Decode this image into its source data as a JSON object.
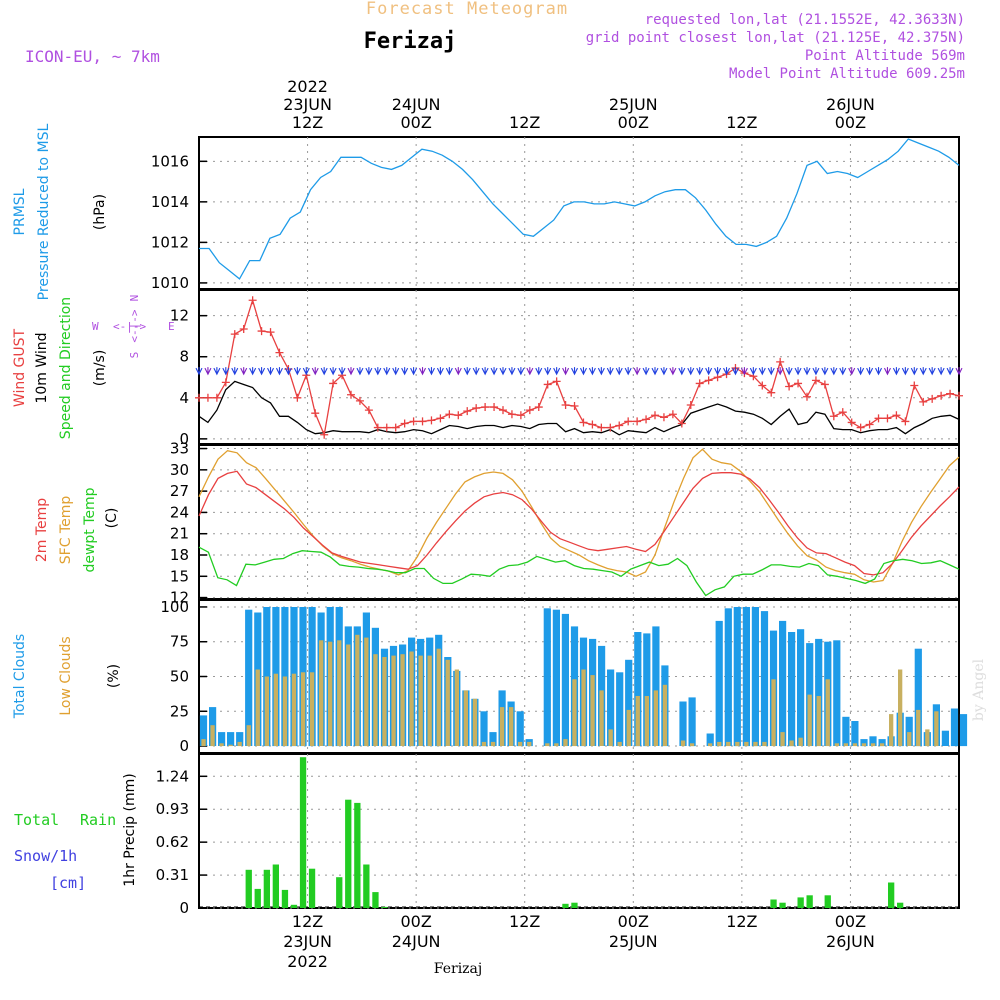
{
  "header": {
    "forecast_title": "Forecast Meteogram",
    "location": "Ferizaj",
    "model": "ICON-EU, ~ 7km",
    "requested": "requested lon,lat (21.1552E, 42.3633N)",
    "grid_point": "grid point closest lon,lat (21.125E, 42.375N)",
    "point_altitude": "Point Altitude 569m",
    "model_altitude": "Model Point Altitude 609.25m",
    "footer_location": "Ferizaj",
    "credit": "by Angel"
  },
  "time_axis": {
    "top_labels": [
      {
        "hour": 12,
        "lines": [
          "2022",
          "23JUN",
          "12Z"
        ]
      },
      {
        "hour": 24,
        "lines": [
          "24JUN",
          "00Z"
        ]
      },
      {
        "hour": 36,
        "lines": [
          "12Z"
        ]
      },
      {
        "hour": 48,
        "lines": [
          "25JUN",
          "00Z"
        ]
      },
      {
        "hour": 60,
        "lines": [
          "12Z"
        ]
      },
      {
        "hour": 72,
        "lines": [
          "26JUN",
          "00Z"
        ]
      }
    ],
    "bottom_labels": [
      {
        "hour": 12,
        "lines": [
          "12Z",
          "23JUN",
          "2022"
        ]
      },
      {
        "hour": 24,
        "lines": [
          "00Z",
          "24JUN"
        ]
      },
      {
        "hour": 36,
        "lines": [
          "12Z"
        ]
      },
      {
        "hour": 48,
        "lines": [
          "00Z",
          "25JUN"
        ]
      },
      {
        "hour": 60,
        "lines": [
          "12Z"
        ]
      },
      {
        "hour": 72,
        "lines": [
          "00Z",
          "26JUN"
        ]
      }
    ]
  },
  "panels": {
    "pressure": {
      "label1": "PRMSL",
      "label2": "Pressure Reduced to MSL",
      "unit": "(hPa)"
    },
    "wind": {
      "gust_label": "Wind GUST",
      "wind_label": "10m Wind",
      "dir_label": "Speed and Direction",
      "unit": "(m/s)",
      "compass_w": "W",
      "compass_e": "E",
      "compass_n": "N",
      "compass_s": "S"
    },
    "temp": {
      "t2m_label": "2m Temp",
      "sfc_label": "SFC Temp",
      "dew_label": "dewpt Temp",
      "unit": "(C)"
    },
    "clouds": {
      "total_label": "Total Clouds",
      "low_label": "Low Clouds",
      "unit": "(%)"
    },
    "precip": {
      "total_label": "Total",
      "rain_label": "Rain",
      "snow_label": "Snow/1h",
      "cm_label": "[cm]",
      "unit": "1hr Precip (mm)"
    }
  },
  "colors": {
    "pressure": "#1e9be8",
    "gust": "#e84040",
    "wind": "#000000",
    "t2m": "#e84040",
    "sfc": "#e0a030",
    "dew": "#22cc22",
    "total_cloud": "#1e9be8",
    "low_cloud": "#c8b060",
    "precip": "#22cc22",
    "purple": "#b050e0",
    "title_orange": "#f0c080",
    "snow": "#4040e0"
  },
  "chart_data": [
    {
      "type": "line",
      "title": "PRMSL",
      "ylabel": "(hPa)",
      "x_start_hour": 0,
      "x_end_hour": 84,
      "yticks": [
        1010,
        1012,
        1014,
        1016
      ],
      "ylim": [
        1009.7,
        1017.2
      ],
      "series": [
        {
          "name": "PRMSL",
          "values": [
            1011.7,
            1011.7,
            1011.0,
            1010.6,
            1010.2,
            1011.1,
            1011.1,
            1012.2,
            1012.4,
            1013.2,
            1013.5,
            1014.6,
            1015.2,
            1015.5,
            1016.2,
            1016.2,
            1016.2,
            1015.9,
            1015.7,
            1015.6,
            1015.8,
            1016.2,
            1016.6,
            1016.5,
            1016.3,
            1016.0,
            1015.6,
            1015.1,
            1014.5,
            1013.9,
            1013.4,
            1012.9,
            1012.4,
            1012.3,
            1012.7,
            1013.1,
            1013.8,
            1014.0,
            1014.0,
            1013.9,
            1013.9,
            1014.0,
            1013.9,
            1013.8,
            1014.0,
            1014.3,
            1014.5,
            1014.6,
            1014.6,
            1014.2,
            1013.6,
            1012.9,
            1012.3,
            1011.9,
            1011.9,
            1011.8,
            1012.0,
            1012.3,
            1013.2,
            1014.4,
            1015.8,
            1016.0,
            1015.4,
            1015.5,
            1015.4,
            1015.2,
            1015.5,
            1015.8,
            1016.1,
            1016.5,
            1017.1,
            1016.9,
            1016.7,
            1016.5,
            1016.2,
            1015.8
          ]
        }
      ]
    },
    {
      "type": "line",
      "title": "Wind",
      "ylabel": "(m/s)",
      "x_start_hour": 0,
      "x_end_hour": 84,
      "yticks": [
        0,
        4,
        8,
        12
      ],
      "ylim": [
        -0.5,
        14.5
      ],
      "series": [
        {
          "name": "Wind GUST",
          "values": [
            4.0,
            4.0,
            4.0,
            5.5,
            10.2,
            10.7,
            13.5,
            10.5,
            10.4,
            8.4,
            6.8,
            4.0,
            6.2,
            2.5,
            0.4,
            5.4,
            6.2,
            4.3,
            3.7,
            2.8,
            1.1,
            1.1,
            1.1,
            1.5,
            1.7,
            1.7,
            1.8,
            2.0,
            2.4,
            2.3,
            2.7,
            3.0,
            3.1,
            3.1,
            2.8,
            2.4,
            2.3,
            2.8,
            3.1,
            5.3,
            5.6,
            3.3,
            3.2,
            1.6,
            1.4,
            1.1,
            1.1,
            1.3,
            1.7,
            1.7,
            1.9,
            2.3,
            2.1,
            2.4,
            1.5,
            3.3,
            5.4,
            5.7,
            6.0,
            6.3,
            6.9,
            6.4,
            6.1,
            5.2,
            4.5,
            7.5,
            5.1,
            5.4,
            4.1,
            5.7,
            5.3,
            2.2,
            2.6,
            1.6,
            1.1,
            1.4,
            2.0,
            2.0,
            2.3,
            1.7,
            5.2,
            3.6,
            3.9,
            4.2,
            4.4,
            4.2
          ]
        },
        {
          "name": "10m Wind",
          "values": [
            2.2,
            1.6,
            2.8,
            4.8,
            5.6,
            5.3,
            5.0,
            4.0,
            3.5,
            2.2,
            2.2,
            1.6,
            0.9,
            0.5,
            0.6,
            0.8,
            0.7,
            0.7,
            0.7,
            0.6,
            0.9,
            0.7,
            0.6,
            0.7,
            0.9,
            0.8,
            0.5,
            0.9,
            1.3,
            1.2,
            1.0,
            1.2,
            1.3,
            1.3,
            1.1,
            1.3,
            1.2,
            1.0,
            1.4,
            1.5,
            1.5,
            0.7,
            1.0,
            0.6,
            0.7,
            0.6,
            0.9,
            0.4,
            0.8,
            0.7,
            0.6,
            1.1,
            0.7,
            1.1,
            1.4,
            2.5,
            2.8,
            3.1,
            3.4,
            3.1,
            2.7,
            2.6,
            2.4,
            2.0,
            1.4,
            2.2,
            2.9,
            1.4,
            1.6,
            2.6,
            2.4,
            1.0,
            0.9,
            0.9,
            0.6,
            0.8,
            0.9,
            0.9,
            1.1,
            0.5,
            1.1,
            1.5,
            2.0,
            2.2,
            2.3,
            1.9
          ]
        }
      ]
    },
    {
      "type": "line",
      "title": "Temperature",
      "ylabel": "(C)",
      "x_start_hour": 0,
      "x_end_hour": 84,
      "yticks": [
        12,
        15,
        18,
        21,
        24,
        27,
        30,
        33
      ],
      "ylim": [
        11.8,
        33.5
      ],
      "series": [
        {
          "name": "2m Temp",
          "values": [
            23.5,
            26.5,
            28.8,
            29.5,
            29.8,
            28.0,
            27.5,
            26.5,
            25.5,
            24.5,
            23.3,
            21.8,
            20.6,
            19.4,
            18.3,
            17.8,
            17.4,
            17.0,
            16.8,
            16.6,
            16.4,
            16.2,
            16.0,
            16.5,
            18.0,
            19.7,
            21.3,
            22.8,
            24.2,
            25.3,
            26.2,
            26.6,
            26.8,
            26.5,
            25.8,
            24.5,
            22.8,
            21.2,
            20.3,
            19.8,
            19.3,
            18.8,
            18.6,
            18.8,
            19.0,
            19.2,
            18.8,
            18.5,
            19.5,
            21.4,
            23.4,
            25.4,
            27.4,
            28.8,
            29.5,
            29.6,
            29.6,
            29.4,
            28.7,
            27.5,
            25.8,
            24.0,
            22.1,
            20.4,
            19.0,
            18.3,
            18.2,
            17.6,
            17.0,
            16.5,
            15.4,
            15.2,
            15.5,
            16.8,
            18.6,
            20.5,
            22.1,
            23.5,
            24.9,
            26.2,
            27.6
          ]
        },
        {
          "name": "SFC Temp",
          "values": [
            26.2,
            29.0,
            31.5,
            32.7,
            32.4,
            31.0,
            30.3,
            28.8,
            27.2,
            25.6,
            24.0,
            22.3,
            20.7,
            19.3,
            18.2,
            17.6,
            17.2,
            16.7,
            16.3,
            16.0,
            15.7,
            15.2,
            15.8,
            17.8,
            20.4,
            22.6,
            24.6,
            26.6,
            28.3,
            29.0,
            29.5,
            29.7,
            29.5,
            28.6,
            27.0,
            24.8,
            22.5,
            20.4,
            19.2,
            18.6,
            18.0,
            17.2,
            16.6,
            16.1,
            15.8,
            15.6,
            15.0,
            15.6,
            18.0,
            21.8,
            25.5,
            28.8,
            31.7,
            32.9,
            31.5,
            31.0,
            30.8,
            29.8,
            28.4,
            26.9,
            24.9,
            22.9,
            21.0,
            19.3,
            17.9,
            17.3,
            16.3,
            15.8,
            15.5,
            15.3,
            14.5,
            14.2,
            14.4,
            16.8,
            19.9,
            22.6,
            24.8,
            26.8,
            28.7,
            30.6,
            31.8
          ]
        },
        {
          "name": "dewpt Temp",
          "values": [
            19.1,
            18.4,
            14.8,
            14.5,
            13.7,
            16.7,
            16.6,
            17.0,
            17.4,
            17.5,
            18.2,
            18.6,
            18.5,
            18.4,
            17.7,
            16.6,
            16.4,
            16.3,
            16.1,
            16.0,
            15.8,
            15.5,
            15.5,
            16.1,
            16.1,
            14.7,
            14.0,
            14.0,
            14.6,
            15.3,
            15.2,
            15.0,
            16.0,
            16.5,
            16.6,
            17.0,
            17.8,
            17.4,
            17.0,
            17.2,
            16.5,
            16.1,
            16.0,
            15.8,
            15.6,
            15.0,
            16.0,
            16.5,
            17.0,
            16.5,
            16.7,
            17.5,
            16.5,
            14.2,
            12.3,
            13.1,
            13.5,
            15.0,
            15.3,
            15.3,
            15.9,
            16.6,
            16.6,
            16.4,
            16.3,
            16.8,
            16.5,
            15.2,
            15.0,
            14.7,
            14.4,
            14.0,
            14.6,
            16.8,
            17.2,
            17.4,
            17.2,
            16.8,
            16.9,
            17.2,
            16.6,
            16.0
          ]
        }
      ]
    },
    {
      "type": "bar",
      "title": "Clouds",
      "ylabel": "(%)",
      "x_start_hour": 0,
      "x_end_hour": 84,
      "yticks": [
        0,
        25,
        50,
        75,
        100
      ],
      "ylim": [
        -5,
        105
      ],
      "series": [
        {
          "name": "Total Clouds",
          "values": [
            22,
            28,
            10,
            10,
            10,
            98,
            96,
            100,
            100,
            100,
            100,
            100,
            100,
            96,
            100,
            100,
            86,
            86,
            96,
            85,
            70,
            72,
            73,
            78,
            77,
            78,
            80,
            64,
            54,
            40,
            34,
            25,
            10,
            40,
            32,
            25,
            5,
            0,
            99,
            98,
            95,
            86,
            78,
            77,
            72,
            55,
            53,
            62,
            82,
            81,
            86,
            58,
            0,
            32,
            35,
            0,
            9,
            90,
            99,
            100,
            100,
            100,
            97,
            83,
            90,
            82,
            84,
            74,
            77,
            75,
            76,
            21,
            18,
            5,
            7,
            5,
            7,
            24,
            21,
            70,
            10,
            30,
            11,
            27,
            23
          ]
        },
        {
          "name": "Low Clouds",
          "values": [
            5,
            15,
            2,
            1,
            3,
            15,
            55,
            50,
            52,
            50,
            52,
            53,
            53,
            76,
            75,
            76,
            73,
            80,
            78,
            66,
            64,
            65,
            66,
            68,
            65,
            65,
            70,
            62,
            55,
            40,
            34,
            3,
            3,
            28,
            28,
            3,
            3,
            0,
            2,
            2,
            5,
            48,
            55,
            51,
            40,
            12,
            3,
            26,
            36,
            36,
            40,
            44,
            0,
            4,
            2,
            0,
            2,
            3,
            3,
            3,
            3,
            3,
            3,
            48,
            10,
            4,
            6,
            37,
            36,
            48,
            2,
            2,
            2,
            2,
            2,
            2,
            23,
            55,
            10,
            26,
            12,
            25
          ]
        }
      ]
    },
    {
      "type": "bar",
      "title": "1hr Precip",
      "ylabel": "1hr Precip (mm)",
      "x_start_hour": 0,
      "x_end_hour": 84,
      "yticks": [
        0,
        0.31,
        0.62,
        0.93,
        1.24
      ],
      "ylim": [
        0,
        1.45
      ],
      "series": [
        {
          "name": "Total Rain",
          "values": [
            0,
            0,
            0,
            0,
            0,
            0.36,
            0.18,
            0.36,
            0.41,
            0.17,
            0.03,
            1.42,
            0.37,
            0.0,
            0.0,
            0.29,
            1.02,
            0.99,
            0.41,
            0.15,
            0.01,
            0,
            0,
            0,
            0,
            0,
            0,
            0,
            0,
            0,
            0,
            0,
            0,
            0,
            0,
            0,
            0,
            0,
            0,
            0,
            0.04,
            0.05,
            0,
            0,
            0,
            0,
            0,
            0,
            0,
            0,
            0,
            0,
            0,
            0,
            0,
            0,
            0,
            0,
            0,
            0,
            0,
            0,
            0,
            0.08,
            0.05,
            0,
            0.1,
            0.12,
            0,
            0.12,
            0,
            0,
            0,
            0,
            0,
            0,
            0.24,
            0.05,
            0,
            0,
            0,
            0,
            0,
            0
          ]
        }
      ]
    }
  ]
}
